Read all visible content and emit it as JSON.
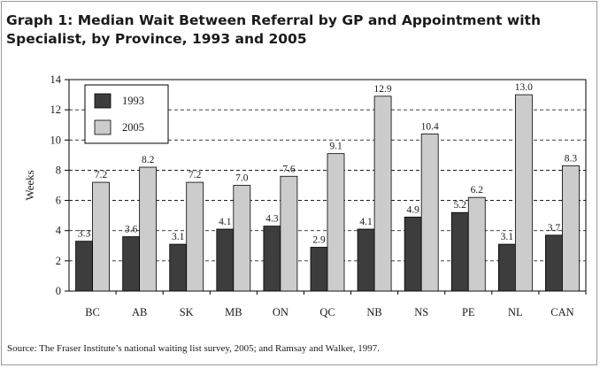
{
  "title_line1": "Graph 1: Median Wait Between Referral by GP and Appointment with",
  "title_line2": "Specialist, by Province, 1993 and 2005",
  "source": "Source: The Fraser Institute’s national waiting list survey, 2005; and Ramsay and Walker, 1997.",
  "chart_data": {
    "type": "bar",
    "title": "Graph 1: Median Wait Between Referral by GP and Appointment with Specialist, by Province, 1993 and 2005",
    "ylabel": "Weeks",
    "xlabel": "",
    "ylim": [
      0,
      14
    ],
    "yticks": [
      0,
      2,
      4,
      6,
      8,
      10,
      12,
      14
    ],
    "grid": "horizontal dashed",
    "legend_position": "top-left",
    "categories": [
      "BC",
      "AB",
      "SK",
      "MB",
      "ON",
      "QC",
      "NB",
      "NS",
      "PE",
      "NL",
      "CAN"
    ],
    "series": [
      {
        "name": "1993",
        "color": "#3d3d3d",
        "values": [
          3.3,
          3.6,
          3.1,
          4.1,
          4.3,
          2.9,
          4.1,
          4.9,
          5.2,
          3.1,
          3.7
        ],
        "labels": [
          "3.3",
          "3.6",
          "3.1",
          "4.1",
          "4.3",
          "2.9",
          "4.1",
          "4.9",
          "5.2",
          "3.1",
          "3.7"
        ]
      },
      {
        "name": "2005",
        "color": "#cccccc",
        "values": [
          7.2,
          8.2,
          7.2,
          7.0,
          7.6,
          9.1,
          12.9,
          10.4,
          6.2,
          13.0,
          8.3
        ],
        "labels": [
          "7.2",
          "8.2",
          "7.2",
          "7.0",
          "7.6",
          "9.1",
          "12.9",
          "10.4",
          "6.2",
          "13.0",
          "8.3"
        ]
      }
    ]
  }
}
